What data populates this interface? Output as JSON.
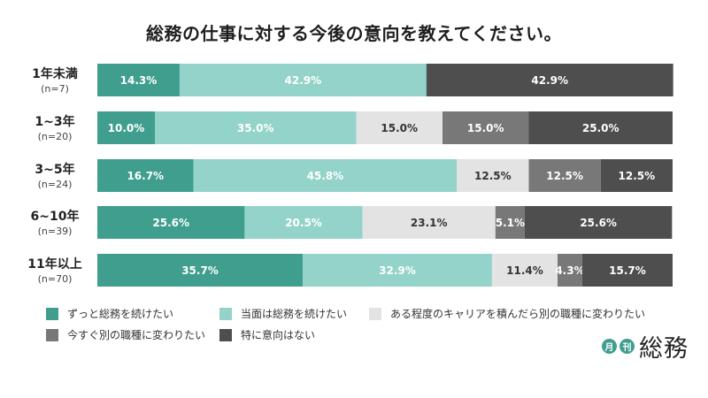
{
  "title": "総務の仕事に対する今後の意向を教えてください。",
  "colors": {
    "s1": "#3f9e8e",
    "s2": "#93d3c9",
    "s3": "#e3e3e3",
    "s4": "#787878",
    "s5": "#4e4e4e"
  },
  "chart_data": {
    "type": "bar",
    "orientation": "horizontal-stacked-100",
    "title": "総務の仕事に対する今後の意向を教えてください。",
    "categories": [
      {
        "label": "1年未満",
        "n": "(n=7)"
      },
      {
        "label": "1~3年",
        "n": "(n=20)"
      },
      {
        "label": "3~5年",
        "n": "(n=24)"
      },
      {
        "label": "6~10年",
        "n": "(n=39)"
      },
      {
        "label": "11年以上",
        "n": "(n=70)"
      }
    ],
    "series": [
      {
        "name": "ずっと総務を続けたい",
        "values": [
          14.3,
          10.0,
          16.7,
          25.6,
          35.7
        ]
      },
      {
        "name": "当面は総務を続けたい",
        "values": [
          42.9,
          35.0,
          45.8,
          20.5,
          32.9
        ]
      },
      {
        "name": "ある程度のキャリアを積んだら別の職種に変わりたい",
        "values": [
          0,
          15.0,
          12.5,
          23.1,
          11.4
        ]
      },
      {
        "name": "今すぐ別の職種に変わりたい",
        "values": [
          0,
          15.0,
          12.5,
          5.1,
          4.3
        ]
      },
      {
        "name": "特に意向はない",
        "values": [
          42.9,
          25.0,
          12.5,
          25.6,
          15.7
        ]
      }
    ],
    "value_format": "%",
    "legend_position": "bottom"
  },
  "logo": {
    "badge1": "月",
    "badge2": "刊",
    "word": "総務"
  }
}
